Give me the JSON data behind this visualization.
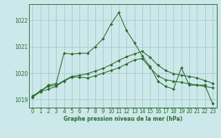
{
  "bg_color": "#cce8ea",
  "grid_color": "#aacccc",
  "line_color": "#2d6a2d",
  "marker_color": "#2d6a2d",
  "xlabel": "Graphe pression niveau de la mer (hPa)",
  "ylim": [
    1018.7,
    1022.6
  ],
  "xlim": [
    -0.5,
    23.5
  ],
  "yticks": [
    1019,
    1020,
    1021,
    1022
  ],
  "xticks": [
    0,
    1,
    2,
    3,
    4,
    5,
    6,
    7,
    8,
    9,
    10,
    11,
    12,
    13,
    14,
    15,
    16,
    17,
    18,
    19,
    20,
    21,
    22,
    23
  ],
  "series": [
    [
      1019.1,
      1019.3,
      1019.4,
      1019.5,
      1019.7,
      1019.85,
      1019.85,
      1019.82,
      1019.9,
      1020.0,
      1020.1,
      1020.2,
      1020.35,
      1020.5,
      1020.55,
      1020.2,
      1019.9,
      1019.75,
      1019.7,
      1019.65,
      1019.6,
      1019.55,
      1019.5,
      1019.45
    ],
    [
      1019.1,
      1019.35,
      1019.5,
      1019.55,
      1019.72,
      1019.88,
      1019.92,
      1019.98,
      1020.08,
      1020.18,
      1020.32,
      1020.48,
      1020.62,
      1020.72,
      1020.82,
      1020.6,
      1020.3,
      1020.1,
      1019.98,
      1019.92,
      1019.88,
      1019.82,
      1019.72,
      1019.62
    ],
    [
      1019.15,
      1019.3,
      1019.55,
      1019.6,
      1020.75,
      1020.72,
      1020.75,
      1020.75,
      1021.0,
      1021.3,
      1021.85,
      1022.28,
      1021.6,
      1021.15,
      1020.65,
      1020.25,
      1019.7,
      1019.5,
      1019.4,
      1020.2,
      1019.55,
      1019.55,
      1019.55,
      1018.85
    ]
  ]
}
